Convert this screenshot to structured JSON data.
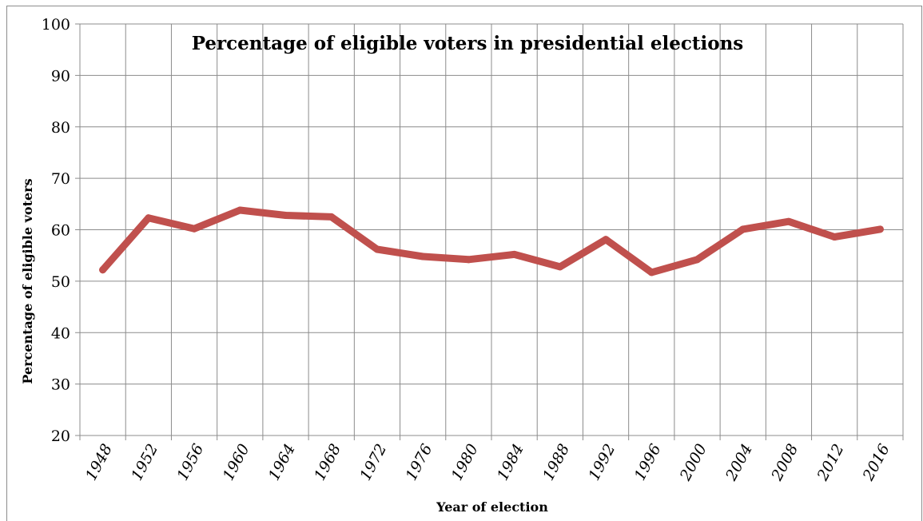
{
  "chart_data": {
    "type": "line",
    "title": "Percentage of eligible voters in presidential elections",
    "xlabel": "Year of election",
    "ylabel": "Percentage of eligible voters",
    "categories": [
      "1948",
      "1952",
      "1956",
      "1960",
      "1964",
      "1968",
      "1972",
      "1976",
      "1980",
      "1984",
      "1988",
      "1992",
      "1996",
      "2000",
      "2004",
      "2008",
      "2012",
      "2016"
    ],
    "values": [
      52.2,
      62.3,
      60.2,
      63.8,
      62.8,
      62.5,
      56.2,
      54.8,
      54.2,
      55.2,
      52.8,
      58.1,
      51.7,
      54.2,
      60.1,
      61.6,
      58.6,
      60.1
    ],
    "ylim": [
      20,
      100
    ],
    "yticks": [
      20,
      30,
      40,
      50,
      60,
      70,
      80,
      90,
      100
    ],
    "grid": true,
    "legend": "none",
    "line_color": "#c0504d"
  }
}
